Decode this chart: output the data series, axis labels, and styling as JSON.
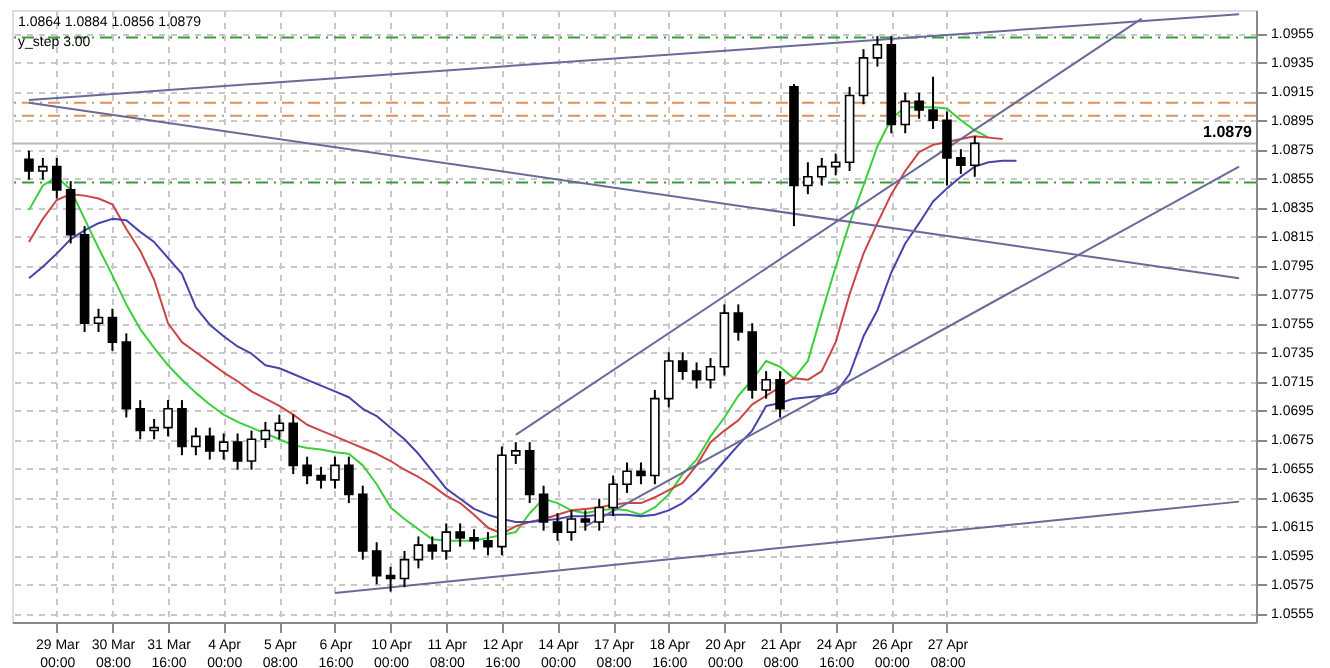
{
  "chart_data": {
    "type": "candlestick",
    "categories": [
      null,
      null,
      "29 Mar 00:00",
      null,
      null,
      null,
      "30 Mar 08:00",
      null,
      null,
      null,
      "31 Mar 16:00",
      null,
      null,
      null,
      "4 Apr 00:00",
      null,
      null,
      null,
      "5 Apr 08:00",
      null,
      null,
      null,
      "6 Apr 16:00",
      null,
      null,
      null,
      "10 Apr 00:00",
      null,
      null,
      null,
      "11 Apr 08:00",
      null,
      null,
      null,
      "12 Apr 16:00",
      null,
      null,
      null,
      "14 Apr 00:00",
      null,
      null,
      null,
      "17 Apr 08:00",
      null,
      null,
      null,
      "18 Apr 16:00",
      null,
      null,
      null,
      "20 Apr 00:00",
      null,
      null,
      null,
      "21 Apr 08:00",
      null,
      null,
      null,
      "24 Apr 16:00",
      null,
      null,
      null,
      "26 Apr 00:00",
      null,
      null,
      null,
      "27 Apr 08:00",
      null,
      null,
      null,
      null,
      null,
      null,
      null,
      null,
      null,
      null,
      null,
      null,
      null,
      null,
      null,
      null,
      null,
      null,
      null,
      null,
      null
    ],
    "ohlc": [
      [
        1.0868,
        1.0874,
        1.0854,
        1.086
      ],
      [
        1.086,
        1.0869,
        1.0854,
        1.0863
      ],
      [
        1.0863,
        1.0869,
        1.0841,
        1.0847
      ],
      [
        1.0847,
        1.0853,
        1.081,
        1.0816
      ],
      [
        1.0816,
        1.0822,
        1.0749,
        1.0755
      ],
      [
        1.0755,
        1.0765,
        1.0749,
        1.0759
      ],
      [
        1.0759,
        1.0765,
        1.0736,
        1.0742
      ],
      [
        1.0742,
        1.0748,
        1.069,
        1.0696
      ],
      [
        1.0696,
        1.0702,
        1.0675,
        1.0681
      ],
      [
        1.0681,
        1.0689,
        1.0675,
        1.0683
      ],
      [
        1.0683,
        1.0702,
        1.0677,
        1.0696
      ],
      [
        1.0696,
        1.0702,
        1.0664,
        1.067
      ],
      [
        1.067,
        1.0683,
        1.0664,
        1.0677
      ],
      [
        1.0677,
        1.0683,
        1.0661,
        1.0667
      ],
      [
        1.0667,
        1.0679,
        1.0661,
        1.0673
      ],
      [
        1.0673,
        1.0679,
        1.0654,
        1.066
      ],
      [
        1.066,
        1.0681,
        1.0654,
        1.0675
      ],
      [
        1.0675,
        1.0687,
        1.0669,
        1.0681
      ],
      [
        1.0681,
        1.0692,
        1.0675,
        1.0686
      ],
      [
        1.0686,
        1.0692,
        1.0651,
        1.0657
      ],
      [
        1.0657,
        1.0663,
        1.0644,
        1.065
      ],
      [
        1.065,
        1.0656,
        1.0641,
        1.0647
      ],
      [
        1.0647,
        1.0663,
        1.0641,
        1.0657
      ],
      [
        1.0657,
        1.0663,
        1.0631,
        1.0637
      ],
      [
        1.0637,
        1.0643,
        1.0592,
        1.0598
      ],
      [
        1.0598,
        1.0604,
        1.0575,
        1.0581
      ],
      [
        1.0581,
        1.0587,
        1.057,
        1.0579
      ],
      [
        1.0579,
        1.0598,
        1.0573,
        1.0592
      ],
      [
        1.0592,
        1.0608,
        1.0586,
        1.0602
      ],
      [
        1.0602,
        1.0608,
        1.0592,
        1.0598
      ],
      [
        1.0598,
        1.0617,
        1.0592,
        1.0611
      ],
      [
        1.0611,
        1.0617,
        1.0601,
        1.0607
      ],
      [
        1.0607,
        1.0613,
        1.0599,
        1.0605
      ],
      [
        1.0605,
        1.0611,
        1.0595,
        1.0601
      ],
      [
        1.0601,
        1.067,
        1.0595,
        1.0664
      ],
      [
        1.0664,
        1.0673,
        1.0658,
        1.0667
      ],
      [
        1.0667,
        1.0673,
        1.0631,
        1.0637
      ],
      [
        1.0637,
        1.0643,
        1.0612,
        1.0618
      ],
      [
        1.0618,
        1.0624,
        1.0605,
        1.0611
      ],
      [
        1.0611,
        1.0626,
        1.0605,
        1.062
      ],
      [
        1.062,
        1.0626,
        1.0612,
        1.0618
      ],
      [
        1.0618,
        1.0634,
        1.0612,
        1.0628
      ],
      [
        1.0628,
        1.065,
        1.0622,
        1.0644
      ],
      [
        1.0644,
        1.0659,
        1.0638,
        1.0653
      ],
      [
        1.0653,
        1.0659,
        1.0644,
        1.065
      ],
      [
        1.065,
        1.0709,
        1.0644,
        1.0703
      ],
      [
        1.0703,
        1.0735,
        1.0697,
        1.0729
      ],
      [
        1.0729,
        1.0735,
        1.0716,
        1.0722
      ],
      [
        1.0722,
        1.0728,
        1.071,
        1.0716
      ],
      [
        1.0716,
        1.0731,
        1.071,
        1.0725
      ],
      [
        1.0725,
        1.0768,
        1.0719,
        1.0762
      ],
      [
        1.0762,
        1.0768,
        1.0743,
        1.0749
      ],
      [
        1.0749,
        1.0755,
        1.0703,
        1.0709
      ],
      [
        1.0709,
        1.0722,
        1.0703,
        1.0716
      ],
      [
        1.0716,
        1.0722,
        1.069,
        1.0696
      ],
      [
        1.0918,
        1.092,
        1.0822,
        1.085
      ],
      [
        1.085,
        1.0866,
        1.0844,
        1.0856
      ],
      [
        1.0856,
        1.0869,
        1.085,
        1.0863
      ],
      [
        1.0863,
        1.0872,
        1.0857,
        1.0866
      ],
      [
        1.0866,
        1.0918,
        1.086,
        1.0912
      ],
      [
        1.0912,
        1.0944,
        1.0906,
        1.0938
      ],
      [
        1.0938,
        1.0953,
        1.0932,
        1.0947
      ],
      [
        1.0947,
        1.0953,
        1.0886,
        1.0892
      ],
      [
        1.0892,
        1.0914,
        1.0886,
        1.0908
      ],
      [
        1.0908,
        1.0914,
        1.0896,
        1.0902
      ],
      [
        1.0902,
        1.0925,
        1.0889,
        1.0895
      ],
      [
        1.0895,
        1.0901,
        1.085,
        1.0869
      ],
      [
        1.0869,
        1.0875,
        1.0858,
        1.0864
      ],
      [
        1.0864,
        1.0884,
        1.0856,
        1.0879
      ],
      null,
      null,
      null,
      null,
      null,
      null,
      null,
      null,
      null,
      null,
      null,
      null,
      null,
      null,
      null,
      null,
      null,
      null,
      null
    ],
    "series": [
      {
        "type": "line",
        "color": "#3ccf3c",
        "values": [
          1.0833,
          1.085,
          1.0856,
          1.0847,
          1.0827,
          1.0807,
          1.0788,
          1.0768,
          1.0751,
          1.0738,
          1.0726,
          1.0716,
          1.0707,
          1.0699,
          1.0692,
          1.0687,
          1.0683,
          1.0679,
          1.0675,
          1.0671,
          1.0669,
          1.0668,
          1.0666,
          1.0665,
          1.0657,
          1.0644,
          1.0628,
          1.062,
          1.0613,
          1.0606,
          1.0605,
          1.0605,
          1.0605,
          1.0607,
          1.0609,
          1.0611,
          1.0624,
          1.0634,
          1.0631,
          1.0626,
          1.0624,
          1.0626,
          1.0627,
          1.0626,
          1.0623,
          1.0628,
          1.0637,
          1.0651,
          1.0661,
          1.0677,
          1.069,
          1.0705,
          1.0716,
          1.0729,
          1.0725,
          1.0717,
          1.0729,
          1.0762,
          1.0794,
          1.0824,
          1.085,
          1.0877,
          1.0896,
          1.0904,
          1.0904,
          1.0904,
          1.0903,
          1.0895,
          1.0888,
          1.0883,
          null,
          null,
          null,
          null,
          null,
          null,
          null,
          null,
          null,
          null,
          null,
          null,
          null,
          null,
          null,
          null,
          null,
          null
        ]
      },
      {
        "type": "line",
        "color": "#cc4444",
        "values": [
          1.0811,
          1.0827,
          1.084,
          1.0844,
          1.0843,
          1.0841,
          1.0837,
          1.082,
          1.0805,
          1.0785,
          1.0755,
          1.0742,
          1.0735,
          1.0728,
          1.0721,
          1.0715,
          1.0708,
          1.0703,
          1.0698,
          1.0692,
          1.0685,
          1.0681,
          1.0677,
          1.0673,
          1.0669,
          1.0665,
          1.066,
          1.0654,
          1.0649,
          1.0643,
          1.0636,
          1.0631,
          1.0623,
          1.0614,
          1.061,
          1.0615,
          1.0618,
          1.062,
          1.0623,
          1.0626,
          1.0627,
          1.0628,
          1.063,
          1.0631,
          1.0631,
          1.0635,
          1.064,
          1.0645,
          1.0657,
          1.0673,
          1.0681,
          1.0688,
          1.0699,
          1.0705,
          1.0711,
          1.0717,
          1.0716,
          1.0722,
          1.0742,
          1.0775,
          1.0803,
          1.0824,
          1.0844,
          1.086,
          1.0873,
          1.0878,
          1.088,
          1.0882,
          1.0884,
          1.0883,
          1.0882,
          null,
          null,
          null,
          null,
          null,
          null,
          null,
          null,
          null,
          null,
          null,
          null,
          null,
          null,
          null,
          null,
          null
        ]
      },
      {
        "type": "line",
        "color": "#4444aa",
        "values": [
          1.0786,
          1.0794,
          1.0803,
          1.0813,
          1.0819,
          1.0824,
          1.0827,
          1.0826,
          1.0818,
          1.0811,
          1.08,
          1.0789,
          1.0766,
          1.0754,
          1.0746,
          1.0739,
          1.0734,
          1.0726,
          1.0724,
          1.072,
          1.0716,
          1.0712,
          1.0708,
          1.0704,
          1.0696,
          1.0691,
          1.0683,
          1.0675,
          1.0665,
          1.0653,
          1.0641,
          1.0634,
          1.0627,
          1.0623,
          1.062,
          1.0618,
          1.0618,
          1.0619,
          1.062,
          1.0622,
          1.0622,
          1.0623,
          1.0623,
          1.0623,
          1.0622,
          1.0623,
          1.0626,
          1.0631,
          1.0639,
          1.0649,
          1.066,
          1.0671,
          1.0681,
          1.0698,
          1.07,
          1.0703,
          1.0704,
          1.0705,
          1.0707,
          1.072,
          1.0746,
          1.0764,
          1.079,
          1.081,
          1.0824,
          1.0839,
          1.0848,
          1.0856,
          1.0863,
          1.0866,
          1.0867,
          1.0867,
          null,
          null,
          null,
          null,
          null,
          null,
          null,
          null,
          null,
          null,
          null,
          null,
          null,
          null,
          null,
          null
        ]
      },
      {
        "type": "line",
        "color": "#6a6a9a",
        "values": [
          1.0909,
          null,
          null,
          null,
          null,
          null,
          null,
          null,
          null,
          null,
          null,
          null,
          null,
          null,
          null,
          null,
          null,
          null,
          null,
          null,
          null,
          null,
          null,
          null,
          null,
          null,
          null,
          null,
          null,
          null,
          null,
          null,
          null,
          null,
          null,
          null,
          null,
          null,
          null,
          null,
          null,
          null,
          null,
          null,
          null,
          null,
          null,
          null,
          null,
          null,
          null,
          null,
          null,
          null,
          null,
          null,
          null,
          null,
          null,
          null,
          null,
          null,
          null,
          null,
          null,
          null,
          null,
          null,
          null,
          null,
          null,
          null,
          null,
          null,
          null,
          null,
          null,
          null,
          null,
          null,
          null,
          null,
          null,
          null,
          null,
          null,
          null,
          1.0968
        ]
      },
      {
        "type": "line",
        "color": "#6a6a9a",
        "values": [
          1.0907,
          null,
          null,
          null,
          null,
          null,
          null,
          null,
          null,
          null,
          null,
          null,
          null,
          null,
          null,
          null,
          null,
          null,
          null,
          null,
          null,
          null,
          null,
          null,
          null,
          null,
          null,
          null,
          null,
          null,
          null,
          null,
          null,
          null,
          null,
          null,
          null,
          null,
          null,
          null,
          null,
          null,
          null,
          null,
          null,
          null,
          null,
          null,
          null,
          null,
          null,
          null,
          null,
          null,
          null,
          null,
          null,
          null,
          null,
          null,
          null,
          null,
          null,
          null,
          null,
          null,
          null,
          null,
          null,
          null,
          null,
          null,
          null,
          null,
          null,
          null,
          null,
          null,
          null,
          null,
          null,
          null,
          null,
          null,
          null,
          null,
          null,
          1.0786
        ]
      },
      {
        "type": "line",
        "color": "#6a6a9a",
        "values": [
          null,
          null,
          null,
          null,
          null,
          null,
          null,
          null,
          null,
          null,
          null,
          null,
          null,
          null,
          null,
          null,
          null,
          null,
          null,
          null,
          null,
          null,
          1.0569,
          null,
          null,
          null,
          null,
          null,
          null,
          null,
          null,
          null,
          null,
          null,
          null,
          null,
          null,
          null,
          null,
          null,
          null,
          null,
          null,
          null,
          null,
          null,
          null,
          null,
          null,
          null,
          null,
          null,
          null,
          null,
          null,
          null,
          null,
          null,
          null,
          null,
          null,
          null,
          null,
          null,
          null,
          null,
          null,
          null,
          null,
          null,
          null,
          null,
          null,
          null,
          null,
          null,
          null,
          null,
          null,
          null,
          null,
          null,
          null,
          null,
          null,
          null,
          null,
          1.0632
        ]
      },
      {
        "type": "line",
        "color": "#6a6a9a",
        "values": [
          null,
          null,
          null,
          null,
          null,
          null,
          null,
          null,
          null,
          null,
          null,
          null,
          null,
          null,
          null,
          null,
          null,
          null,
          null,
          null,
          null,
          null,
          null,
          null,
          null,
          null,
          null,
          null,
          null,
          null,
          null,
          null,
          null,
          null,
          null,
          null,
          null,
          null,
          null,
          null,
          1.0615,
          null,
          null,
          null,
          null,
          null,
          null,
          null,
          null,
          null,
          null,
          null,
          null,
          null,
          null,
          null,
          null,
          null,
          null,
          null,
          null,
          null,
          null,
          null,
          null,
          null,
          null,
          null,
          null,
          null,
          null,
          null,
          null,
          null,
          null,
          null,
          null,
          null,
          null,
          null,
          null,
          null,
          null,
          null,
          null,
          null,
          null,
          1.0863
        ]
      },
      {
        "type": "line",
        "color": "#6a6a9a",
        "values": [
          null,
          null,
          null,
          null,
          null,
          null,
          null,
          null,
          null,
          null,
          null,
          null,
          null,
          null,
          null,
          null,
          null,
          null,
          null,
          null,
          null,
          null,
          null,
          null,
          null,
          null,
          null,
          null,
          null,
          null,
          null,
          null,
          null,
          null,
          null,
          1.0678,
          null,
          null,
          null,
          null,
          null,
          null,
          null,
          null,
          null,
          null,
          null,
          null,
          null,
          null,
          null,
          null,
          null,
          null,
          null,
          null,
          null,
          null,
          null,
          null,
          null,
          null,
          null,
          null,
          null,
          null,
          null,
          null,
          null,
          null,
          null,
          null,
          null,
          null,
          null,
          null,
          null,
          null,
          null,
          null,
          1.0965,
          null,
          null,
          null,
          null,
          null,
          null,
          null
        ]
      }
    ],
    "ylim": [
      1.0549,
      1.0971
    ],
    "yticks": [
      1.0955,
      1.0935,
      1.0915,
      1.0895,
      1.0875,
      1.0855,
      1.0835,
      1.0815,
      1.0795,
      1.0775,
      1.0755,
      1.0735,
      1.0715,
      1.0695,
      1.0675,
      1.0655,
      1.0635,
      1.0615,
      1.0595,
      1.0575,
      1.0555
    ],
    "grid": true,
    "ref_lines": [
      {
        "axis": "y",
        "value": 1.0952,
        "label": null,
        "color": "#3c9a3c",
        "line_style": "dashed"
      },
      {
        "axis": "y",
        "value": 1.0907,
        "label": null,
        "color": "#e0905a",
        "line_style": "dashed"
      },
      {
        "axis": "y",
        "value": 1.0898,
        "label": null,
        "color": "#e0905a",
        "line_style": "dashed"
      },
      {
        "axis": "y",
        "value": 1.0879,
        "label": "1.0879",
        "color": "#b8b8b8",
        "line_style": "solid"
      },
      {
        "axis": "y",
        "value": 1.0852,
        "label": null,
        "color": "#3c9a3c",
        "line_style": "dashed"
      }
    ],
    "annotations": [
      "1.0864 1.0884 1.0856 1.0879",
      "y_step 3.00"
    ]
  }
}
